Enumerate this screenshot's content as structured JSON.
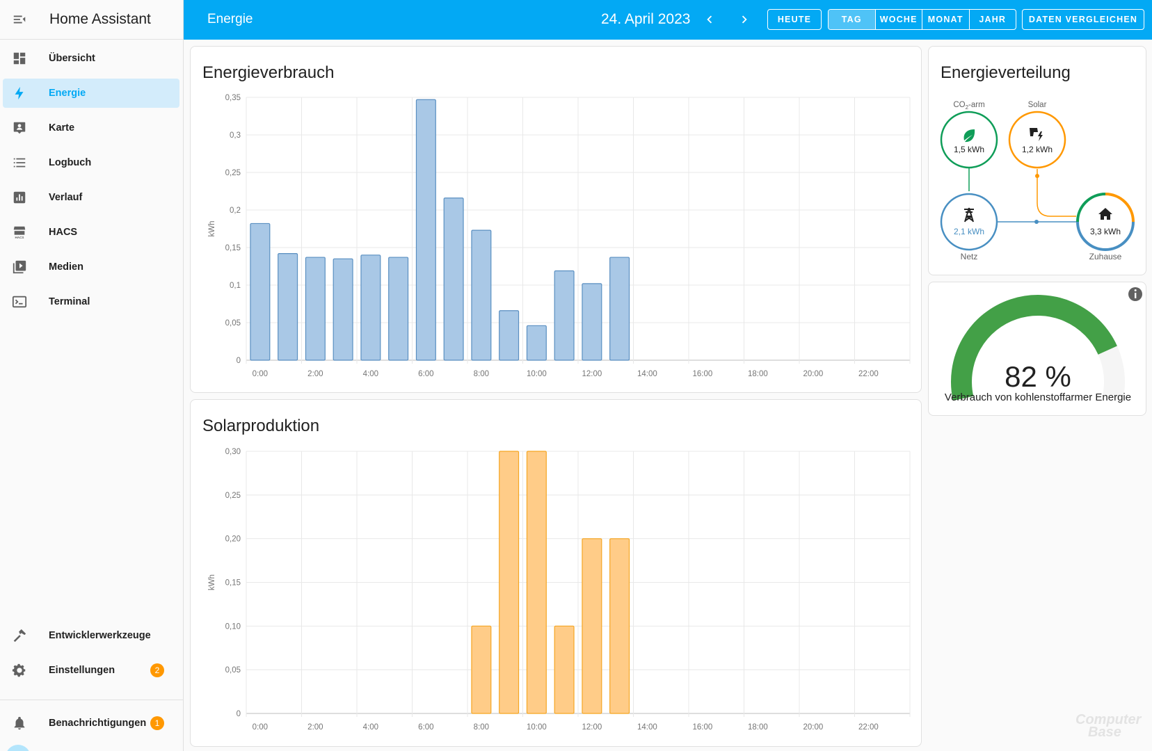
{
  "app": {
    "title": "Home Assistant"
  },
  "sidebar": {
    "items": [
      {
        "label": "Übersicht",
        "icon": "dashboard-icon"
      },
      {
        "label": "Energie",
        "icon": "lightning-icon",
        "active": true
      },
      {
        "label": "Karte",
        "icon": "map-account-icon"
      },
      {
        "label": "Logbuch",
        "icon": "list-icon"
      },
      {
        "label": "Verlauf",
        "icon": "chart-box-icon"
      },
      {
        "label": "HACS",
        "icon": "hacs-store-icon"
      },
      {
        "label": "Medien",
        "icon": "media-play-icon"
      },
      {
        "label": "Terminal",
        "icon": "console-icon"
      }
    ],
    "bottom": [
      {
        "label": "Entwicklerwerkzeuge",
        "icon": "hammer-icon"
      },
      {
        "label": "Einstellungen",
        "icon": "gear-icon",
        "badge": "2"
      },
      {
        "label": "Benachrichtigungen",
        "icon": "bell-icon",
        "badge": "1"
      }
    ]
  },
  "header": {
    "title": "Energie",
    "date": "24. April 2023",
    "today": "HEUTE",
    "periods": [
      "TAG",
      "WOCHE",
      "MONAT",
      "JAHR"
    ],
    "active_period": "TAG",
    "compare": "DATEN VERGLEICHEN"
  },
  "consumption": {
    "title": "Energieverbrauch",
    "chart_data": {
      "type": "bar",
      "ylabel": "kWh",
      "ylim": [
        0,
        0.35
      ],
      "yticks": [
        "0",
        "0,05",
        "0,1",
        "0,15",
        "0,2",
        "0,25",
        "0,3",
        "0,35"
      ],
      "xticks": [
        "0:00",
        "2:00",
        "4:00",
        "6:00",
        "8:00",
        "10:00",
        "12:00",
        "14:00",
        "16:00",
        "18:00",
        "20:00",
        "22:00"
      ],
      "categories": [
        "0",
        "1",
        "2",
        "3",
        "4",
        "5",
        "6",
        "7",
        "8",
        "9",
        "10",
        "11",
        "12",
        "13",
        "14",
        "15",
        "16",
        "17",
        "18",
        "19",
        "20",
        "21",
        "22",
        "23"
      ],
      "values": [
        0.182,
        0.142,
        0.137,
        0.135,
        0.14,
        0.137,
        0.347,
        0.216,
        0.173,
        0.066,
        0.046,
        0.119,
        0.102,
        0.137,
        null,
        null,
        null,
        null,
        null,
        null,
        null,
        null,
        null,
        null
      ],
      "color": "#a9c8e6",
      "stroke": "#5a8fc1"
    }
  },
  "solar": {
    "title": "Solarproduktion",
    "chart_data": {
      "type": "bar",
      "ylabel": "kWh",
      "ylim": [
        0,
        0.3
      ],
      "yticks": [
        "0",
        "0,05",
        "0,10",
        "0,15",
        "0,20",
        "0,25",
        "0,30"
      ],
      "xticks": [
        "0:00",
        "2:00",
        "4:00",
        "6:00",
        "8:00",
        "10:00",
        "12:00",
        "14:00",
        "16:00",
        "18:00",
        "20:00",
        "22:00"
      ],
      "categories": [
        "0",
        "1",
        "2",
        "3",
        "4",
        "5",
        "6",
        "7",
        "8",
        "9",
        "10",
        "11",
        "12",
        "13",
        "14",
        "15",
        "16",
        "17",
        "18",
        "19",
        "20",
        "21",
        "22",
        "23"
      ],
      "values": [
        null,
        null,
        null,
        null,
        null,
        null,
        null,
        null,
        0.1,
        0.3,
        0.3,
        0.1,
        0.2,
        0.2,
        null,
        null,
        null,
        null,
        null,
        null,
        null,
        null,
        null,
        null
      ],
      "color": "#ffcc88",
      "stroke": "#f5a623"
    }
  },
  "distribution": {
    "title": "Energieverteilung",
    "low_carbon": {
      "label": "CO",
      "label_sub": "2",
      "label_suffix": "-arm",
      "value": "1,5 kWh",
      "color": "#0f9d58"
    },
    "solar": {
      "label": "Solar",
      "value": "1,2 kWh",
      "color": "#ff9800"
    },
    "grid": {
      "label": "Netz",
      "value": "2,1 kWh",
      "color": "#488fc2"
    },
    "home": {
      "label": "Zuhause",
      "value": "3,3 kWh",
      "color": "#212121"
    }
  },
  "gauge": {
    "value": 82,
    "value_text": "82 %",
    "label": "Verbrauch von kohlenstoffarmer Energie",
    "color": "#43a047",
    "track_color": "#f5f5f5"
  },
  "watermark": {
    "line1": "Computer",
    "line2": "Base"
  }
}
